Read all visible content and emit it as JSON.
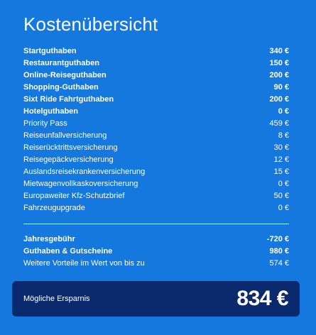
{
  "panel": {
    "title": "Kostenübersicht",
    "items": [
      {
        "label": "Startguthaben",
        "value": "340 €",
        "bold": true
      },
      {
        "label": "Restaurantguthaben",
        "value": "150 €",
        "bold": true
      },
      {
        "label": "Online-Reiseguthaben",
        "value": "200 €",
        "bold": true
      },
      {
        "label": "Shopping-Guthaben",
        "value": "90 €",
        "bold": true
      },
      {
        "label": "Sixt Ride Fahrtguthaben",
        "value": "200 €",
        "bold": true
      },
      {
        "label": "Hotelguthaben",
        "value": "0 €",
        "bold": true
      },
      {
        "label": "Priority Pass",
        "value": "459 €",
        "bold": false
      },
      {
        "label": "Reiseunfallversicherung",
        "value": "8 €",
        "bold": false
      },
      {
        "label": "Reiserücktrittsversicherung",
        "value": "30 €",
        "bold": false
      },
      {
        "label": "Reisegepäckversicherung",
        "value": "12 €",
        "bold": false
      },
      {
        "label": "Auslandsreisekrankenversicherung",
        "value": "15 €",
        "bold": false
      },
      {
        "label": "Mietwagenvollkaskoversicherung",
        "value": "0 €",
        "bold": false
      },
      {
        "label": "Europaweiter Kfz-Schutzbrief",
        "value": "50 €",
        "bold": false
      },
      {
        "label": "Fahrzeugupgrade",
        "value": "0 €",
        "bold": false
      }
    ],
    "totals": [
      {
        "label": "Jahresgebühr",
        "value": "-720 €",
        "bold": true
      },
      {
        "label": "Guthaben & Gutscheine",
        "value": "980 €",
        "bold": true
      },
      {
        "label": "Weitere Vorteile im Wert von bis zu",
        "value": "574 €",
        "bold": false
      }
    ],
    "savings": {
      "label": "Mögliche Ersparnis",
      "value": "834 €"
    }
  },
  "colors": {
    "background": "#1478df",
    "savings_box": "#0b2a6e",
    "text": "#ffffff"
  }
}
